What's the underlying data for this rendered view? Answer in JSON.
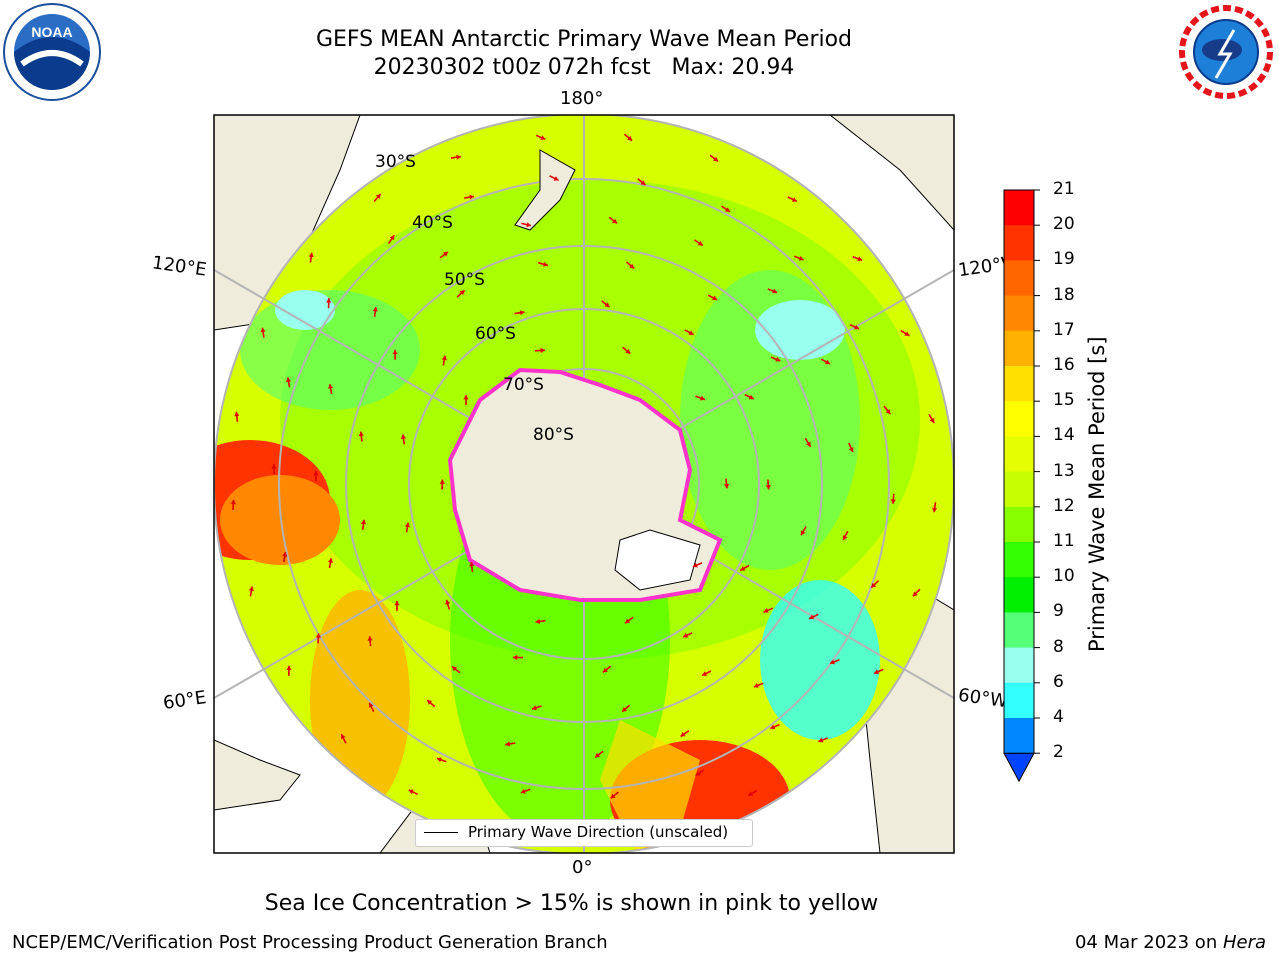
{
  "title": {
    "line1": "GEFS MEAN Antarctic Primary Wave Mean Period",
    "line2": "20230302 t00z 072h fcst   Max: 20.94"
  },
  "map": {
    "projection": "south-polar-stereographic",
    "longitude_labels": {
      "top": "180°",
      "bottom": "0°",
      "upper_left": "120°E",
      "upper_right": "120°W",
      "lower_left": "60°E",
      "lower_right": "60°W"
    },
    "latitude_labels": [
      "30°S",
      "40°S",
      "50°S",
      "60°S",
      "70°S",
      "80°S"
    ],
    "colors": {
      "land": "#efecdc",
      "grid": "#b4b4b4",
      "arrows": "#ff0000",
      "sea_ice": "#ff33cc"
    }
  },
  "legend": {
    "label": "Primary Wave Direction (unscaled)"
  },
  "colorbar": {
    "label": "Primary Wave Mean Period [s]",
    "ticks": [
      "21",
      "20",
      "19",
      "18",
      "17",
      "16",
      "15",
      "14",
      "13",
      "12",
      "11",
      "10",
      "9",
      "8",
      "6",
      "4",
      "2"
    ],
    "colors": [
      "#ff0000",
      "#ff3300",
      "#ff6600",
      "#ff8800",
      "#ffb000",
      "#ffe000",
      "#ffff00",
      "#e6ff00",
      "#c8ff00",
      "#88ff00",
      "#33ff00",
      "#00ee00",
      "#55ff77",
      "#99ffee",
      "#33ffff",
      "#00ffff",
      "#0088ff",
      "#0044ff"
    ],
    "extend": "min"
  },
  "note": "Sea Ice Concentration > 15% is shown in pink to yellow",
  "footer": {
    "left": "NCEP/EMC/Verification Post Processing Product Generation Branch",
    "right_prefix": "04 Mar 2023 on ",
    "right_machine": "Hera"
  },
  "logos": {
    "left": "NOAA",
    "right": "NATIONAL WEATHER SERVICE"
  }
}
